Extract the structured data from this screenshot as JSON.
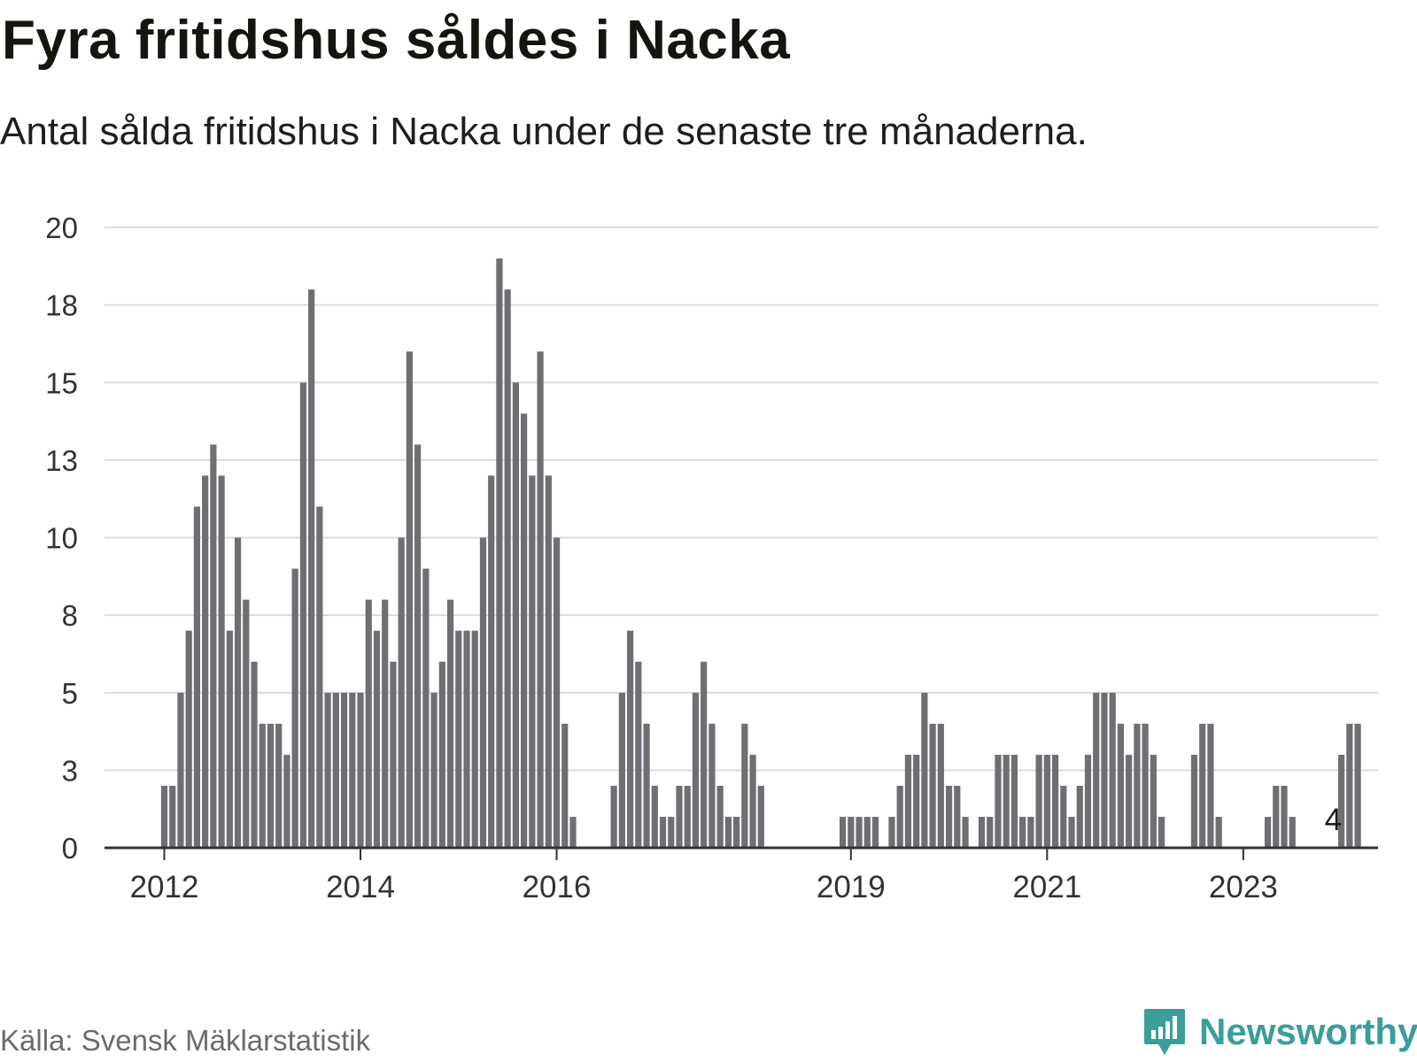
{
  "title": "Fyra fritidshus såldes i Nacka",
  "subtitle": "Antal sålda fritidshus i Nacka under de senaste tre månaderna.",
  "source": "Källa: Svensk Mäklarstatistik",
  "brand": {
    "name": "Newsworthy",
    "icon": "newsworthy-logo-icon"
  },
  "colors": {
    "bar": "#6f6e73",
    "highlight": "#1aa39a",
    "grid": "#dcdcdc",
    "axis": "#333333",
    "brand": "#3a9e9a"
  },
  "chart_data": {
    "type": "bar",
    "title": "Fyra fritidshus såldes i Nacka",
    "xlabel": "",
    "ylabel": "",
    "ylim": [
      0,
      20
    ],
    "grid": true,
    "y_ticks": [
      "0",
      "3",
      "5",
      "8",
      "10",
      "13",
      "15",
      "18",
      "20"
    ],
    "y_tick_values": [
      0,
      2.5,
      5,
      7.5,
      10,
      12.5,
      15,
      17.5,
      20
    ],
    "x_ticks": [
      {
        "label": "2012",
        "index": 0
      },
      {
        "label": "2014",
        "index": 24
      },
      {
        "label": "2016",
        "index": 48
      },
      {
        "label": "2019",
        "index": 84
      },
      {
        "label": "2021",
        "index": 108
      },
      {
        "label": "2023",
        "index": 132
      }
    ],
    "start_index": -8,
    "values": [
      null,
      null,
      null,
      null,
      null,
      null,
      null,
      null,
      2,
      2,
      5,
      7,
      11,
      12,
      13,
      12,
      7,
      10,
      8,
      6,
      4,
      4,
      4,
      3,
      9,
      15,
      18,
      11,
      5,
      5,
      5,
      5,
      5,
      8,
      7,
      8,
      6,
      10,
      16,
      13,
      9,
      5,
      6,
      8,
      7,
      7,
      7,
      10,
      12,
      19,
      18,
      15,
      14,
      12,
      16,
      12,
      10,
      4,
      1,
      null,
      null,
      null,
      null,
      2,
      5,
      7,
      6,
      4,
      2,
      1,
      1,
      2,
      2,
      5,
      6,
      4,
      2,
      1,
      1,
      4,
      3,
      2,
      null,
      null,
      null,
      null,
      null,
      null,
      null,
      null,
      null,
      1,
      1,
      1,
      1,
      1,
      null,
      1,
      2,
      3,
      3,
      5,
      4,
      4,
      2,
      2,
      1,
      null,
      1,
      1,
      3,
      3,
      3,
      1,
      1,
      3,
      3,
      3,
      2,
      1,
      2,
      3,
      5,
      5,
      5,
      4,
      3,
      4,
      4,
      3,
      1,
      null,
      null,
      null,
      3,
      4,
      4,
      1,
      null,
      null,
      null,
      null,
      null,
      1,
      2,
      2,
      1,
      null,
      null,
      null,
      null,
      null,
      3,
      4,
      4
    ],
    "highlight_index": 143,
    "highlight_label": "4"
  }
}
